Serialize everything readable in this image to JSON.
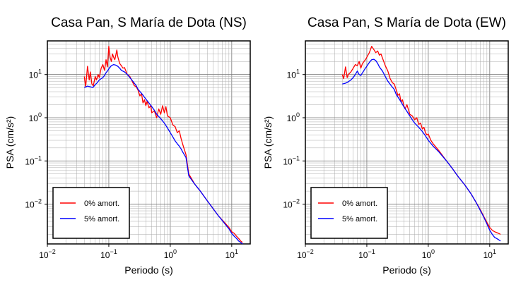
{
  "chart_data": [
    {
      "type": "line",
      "title": "Casa Pan, S María de Dota (NS)",
      "xlabel": "Periodo (s)",
      "ylabel": "PSA (cm/s²)",
      "x_scale": "log",
      "y_scale": "log",
      "xlim": [
        0.01,
        20
      ],
      "ylim": [
        0.0012,
        60
      ],
      "grid": true,
      "legend_position": "bottom-left",
      "x_ticks": [
        {
          "value": 0.01,
          "base": "10",
          "exp": "−2"
        },
        {
          "value": 0.1,
          "base": "10",
          "exp": "−1"
        },
        {
          "value": 1,
          "base": "10",
          "exp": "0"
        },
        {
          "value": 10,
          "base": "10",
          "exp": "1"
        }
      ],
      "y_ticks": [
        {
          "value": 0.01,
          "base": "10",
          "exp": "−2"
        },
        {
          "value": 0.1,
          "base": "10",
          "exp": "−1"
        },
        {
          "value": 1,
          "base": "10",
          "exp": "0"
        },
        {
          "value": 10,
          "base": "10",
          "exp": "1"
        }
      ],
      "series": [
        {
          "name": "0% amort.",
          "color": "#ff0000",
          "points": [
            [
              0.04,
              9.0
            ],
            [
              0.042,
              5.2
            ],
            [
              0.045,
              15.5
            ],
            [
              0.048,
              7.5
            ],
            [
              0.05,
              11.5
            ],
            [
              0.053,
              6.0
            ],
            [
              0.056,
              5.5
            ],
            [
              0.06,
              9.0
            ],
            [
              0.063,
              7.5
            ],
            [
              0.067,
              10.0
            ],
            [
              0.07,
              8.5
            ],
            [
              0.075,
              14.0
            ],
            [
              0.08,
              17.0
            ],
            [
              0.085,
              12.5
            ],
            [
              0.09,
              22.0
            ],
            [
              0.095,
              15.0
            ],
            [
              0.1,
              45.0
            ],
            [
              0.105,
              25.0
            ],
            [
              0.11,
              20.0
            ],
            [
              0.115,
              30.0
            ],
            [
              0.12,
              25.0
            ],
            [
              0.125,
              22.0
            ],
            [
              0.13,
              28.0
            ],
            [
              0.135,
              37.0
            ],
            [
              0.14,
              26.0
            ],
            [
              0.15,
              18.0
            ],
            [
              0.16,
              16.0
            ],
            [
              0.17,
              14.0
            ],
            [
              0.18,
              14.5
            ],
            [
              0.2,
              10.0
            ],
            [
              0.22,
              9.0
            ],
            [
              0.24,
              7.0
            ],
            [
              0.26,
              5.5
            ],
            [
              0.28,
              5.2
            ],
            [
              0.3,
              4.3
            ],
            [
              0.32,
              3.2
            ],
            [
              0.34,
              3.6
            ],
            [
              0.36,
              2.2
            ],
            [
              0.38,
              2.6
            ],
            [
              0.4,
              1.9
            ],
            [
              0.42,
              2.4
            ],
            [
              0.45,
              1.7
            ],
            [
              0.48,
              1.9
            ],
            [
              0.5,
              1.3
            ],
            [
              0.55,
              1.45
            ],
            [
              0.6,
              1.0
            ],
            [
              0.65,
              1.6
            ],
            [
              0.7,
              1.2
            ],
            [
              0.75,
              1.9
            ],
            [
              0.8,
              1.3
            ],
            [
              0.85,
              1.8
            ],
            [
              0.9,
              1.1
            ],
            [
              1.0,
              1.0
            ],
            [
              1.1,
              0.68
            ],
            [
              1.2,
              0.62
            ],
            [
              1.3,
              0.45
            ],
            [
              1.4,
              0.5
            ],
            [
              1.5,
              0.33
            ],
            [
              1.6,
              0.24
            ],
            [
              1.8,
              0.14
            ],
            [
              2.0,
              0.05
            ],
            [
              2.5,
              0.029
            ],
            [
              3.0,
              0.021
            ],
            [
              4.0,
              0.012
            ],
            [
              5.0,
              0.0078
            ],
            [
              6.0,
              0.0055
            ],
            [
              7.0,
              0.0043
            ],
            [
              8.0,
              0.0035
            ],
            [
              9.0,
              0.0029
            ],
            [
              10.0,
              0.0023
            ],
            [
              11.0,
              0.0021
            ],
            [
              12.0,
              0.0018
            ],
            [
              13.0,
              0.0016
            ],
            [
              14.0,
              0.0014
            ],
            [
              15.0,
              0.0013
            ]
          ]
        },
        {
          "name": "5% amort.",
          "color": "#0000ff",
          "points": [
            [
              0.04,
              5.0
            ],
            [
              0.045,
              5.4
            ],
            [
              0.05,
              5.2
            ],
            [
              0.055,
              5.0
            ],
            [
              0.06,
              5.8
            ],
            [
              0.065,
              6.5
            ],
            [
              0.07,
              7.5
            ],
            [
              0.075,
              8.0
            ],
            [
              0.08,
              8.5
            ],
            [
              0.085,
              9.5
            ],
            [
              0.09,
              11.0
            ],
            [
              0.095,
              12.0
            ],
            [
              0.1,
              13.5
            ],
            [
              0.11,
              16.0
            ],
            [
              0.12,
              17.0
            ],
            [
              0.13,
              16.5
            ],
            [
              0.14,
              15.5
            ],
            [
              0.15,
              14.0
            ],
            [
              0.16,
              12.5
            ],
            [
              0.18,
              11.5
            ],
            [
              0.2,
              10.0
            ],
            [
              0.22,
              8.5
            ],
            [
              0.25,
              6.8
            ],
            [
              0.28,
              5.5
            ],
            [
              0.3,
              4.5
            ],
            [
              0.35,
              3.5
            ],
            [
              0.4,
              2.7
            ],
            [
              0.45,
              2.2
            ],
            [
              0.5,
              1.8
            ],
            [
              0.55,
              1.5
            ],
            [
              0.6,
              1.2
            ],
            [
              0.7,
              0.95
            ],
            [
              0.8,
              0.75
            ],
            [
              0.9,
              0.58
            ],
            [
              1.0,
              0.45
            ],
            [
              1.1,
              0.36
            ],
            [
              1.2,
              0.29
            ],
            [
              1.3,
              0.25
            ],
            [
              1.4,
              0.22
            ],
            [
              1.5,
              0.19
            ],
            [
              1.6,
              0.16
            ],
            [
              1.8,
              0.12
            ],
            [
              2.0,
              0.045
            ],
            [
              2.5,
              0.029
            ],
            [
              3.0,
              0.021
            ],
            [
              4.0,
              0.012
            ],
            [
              5.0,
              0.0078
            ],
            [
              6.0,
              0.0055
            ],
            [
              7.0,
              0.0042
            ],
            [
              8.0,
              0.0033
            ],
            [
              9.0,
              0.0027
            ],
            [
              10.0,
              0.0021
            ],
            [
              11.0,
              0.0018
            ],
            [
              12.0,
              0.0016
            ],
            [
              13.0,
              0.0014
            ],
            [
              14.0,
              0.0013
            ],
            [
              15.0,
              0.0012
            ]
          ]
        }
      ]
    },
    {
      "type": "line",
      "title": "Casa Pan, S María de Dota (EW)",
      "xlabel": "Periodo (s)",
      "ylabel": "PSA (cm/s²)",
      "x_scale": "log",
      "y_scale": "log",
      "xlim": [
        0.01,
        20
      ],
      "ylim": [
        0.0012,
        60
      ],
      "grid": true,
      "legend_position": "bottom-left",
      "x_ticks": [
        {
          "value": 0.01,
          "base": "10",
          "exp": "−2"
        },
        {
          "value": 0.1,
          "base": "10",
          "exp": "−1"
        },
        {
          "value": 1,
          "base": "10",
          "exp": "0"
        },
        {
          "value": 10,
          "base": "10",
          "exp": "1"
        }
      ],
      "y_ticks": [
        {
          "value": 0.01,
          "base": "10",
          "exp": "−2"
        },
        {
          "value": 0.1,
          "base": "10",
          "exp": "−1"
        },
        {
          "value": 1,
          "base": "10",
          "exp": "0"
        },
        {
          "value": 10,
          "base": "10",
          "exp": "1"
        }
      ],
      "series": [
        {
          "name": "0% amort.",
          "color": "#ff0000",
          "points": [
            [
              0.04,
              10.0
            ],
            [
              0.042,
              8.0
            ],
            [
              0.045,
              15.0
            ],
            [
              0.048,
              8.5
            ],
            [
              0.05,
              10.0
            ],
            [
              0.055,
              11.5
            ],
            [
              0.06,
              14.0
            ],
            [
              0.065,
              17.0
            ],
            [
              0.07,
              16.0
            ],
            [
              0.075,
              20.0
            ],
            [
              0.08,
              14.0
            ],
            [
              0.085,
              18.0
            ],
            [
              0.09,
              20.0
            ],
            [
              0.095,
              22.0
            ],
            [
              0.1,
              25.0
            ],
            [
              0.11,
              32.0
            ],
            [
              0.12,
              45.0
            ],
            [
              0.13,
              38.0
            ],
            [
              0.14,
              32.0
            ],
            [
              0.15,
              35.0
            ],
            [
              0.16,
              28.0
            ],
            [
              0.17,
              30.0
            ],
            [
              0.18,
              24.0
            ],
            [
              0.2,
              16.0
            ],
            [
              0.22,
              12.0
            ],
            [
              0.24,
              8.0
            ],
            [
              0.26,
              6.5
            ],
            [
              0.28,
              6.0
            ],
            [
              0.3,
              4.5
            ],
            [
              0.32,
              3.3
            ],
            [
              0.34,
              3.6
            ],
            [
              0.36,
              2.3
            ],
            [
              0.38,
              2.6
            ],
            [
              0.4,
              1.9
            ],
            [
              0.42,
              1.6
            ],
            [
              0.45,
              2.0
            ],
            [
              0.5,
              1.2
            ],
            [
              0.55,
              1.1
            ],
            [
              0.6,
              0.9
            ],
            [
              0.65,
              1.0
            ],
            [
              0.7,
              0.7
            ],
            [
              0.75,
              0.75
            ],
            [
              0.8,
              0.55
            ],
            [
              0.85,
              0.6
            ],
            [
              0.9,
              0.45
            ],
            [
              0.95,
              0.4
            ],
            [
              1.0,
              0.42
            ],
            [
              1.1,
              0.3
            ],
            [
              1.2,
              0.25
            ],
            [
              1.5,
              0.17
            ],
            [
              2.0,
              0.098
            ],
            [
              2.5,
              0.065
            ],
            [
              3.0,
              0.045
            ],
            [
              4.0,
              0.027
            ],
            [
              5.0,
              0.017
            ],
            [
              6.0,
              0.011
            ],
            [
              7.0,
              0.0075
            ],
            [
              8.0,
              0.0052
            ],
            [
              9.0,
              0.0038
            ],
            [
              10.0,
              0.0029
            ],
            [
              11.0,
              0.0025
            ],
            [
              12.0,
              0.0023
            ],
            [
              13.0,
              0.0022
            ],
            [
              14.0,
              0.0021
            ],
            [
              15.0,
              0.002
            ]
          ]
        },
        {
          "name": "5% amort.",
          "color": "#0000ff",
          "points": [
            [
              0.04,
              6.0
            ],
            [
              0.045,
              6.3
            ],
            [
              0.05,
              6.8
            ],
            [
              0.055,
              7.5
            ],
            [
              0.06,
              8.5
            ],
            [
              0.065,
              10.0
            ],
            [
              0.07,
              12.0
            ],
            [
              0.075,
              10.0
            ],
            [
              0.08,
              9.5
            ],
            [
              0.085,
              11.0
            ],
            [
              0.09,
              12.5
            ],
            [
              0.095,
              14.0
            ],
            [
              0.1,
              15.5
            ],
            [
              0.11,
              19.0
            ],
            [
              0.12,
              22.0
            ],
            [
              0.13,
              22.5
            ],
            [
              0.14,
              21.0
            ],
            [
              0.15,
              18.0
            ],
            [
              0.16,
              15.0
            ],
            [
              0.18,
              12.0
            ],
            [
              0.2,
              9.0
            ],
            [
              0.22,
              7.0
            ],
            [
              0.25,
              5.5
            ],
            [
              0.28,
              4.5
            ],
            [
              0.3,
              3.5
            ],
            [
              0.35,
              2.5
            ],
            [
              0.4,
              1.8
            ],
            [
              0.45,
              1.4
            ],
            [
              0.5,
              1.1
            ],
            [
              0.55,
              0.9
            ],
            [
              0.6,
              0.75
            ],
            [
              0.7,
              0.6
            ],
            [
              0.8,
              0.48
            ],
            [
              0.9,
              0.38
            ],
            [
              1.0,
              0.3
            ],
            [
              1.2,
              0.22
            ],
            [
              1.5,
              0.16
            ],
            [
              2.0,
              0.098
            ],
            [
              2.5,
              0.065
            ],
            [
              3.0,
              0.045
            ],
            [
              4.0,
              0.027
            ],
            [
              5.0,
              0.017
            ],
            [
              6.0,
              0.011
            ],
            [
              7.0,
              0.0072
            ],
            [
              8.0,
              0.005
            ],
            [
              9.0,
              0.0035
            ],
            [
              10.0,
              0.0025
            ],
            [
              11.0,
              0.002
            ],
            [
              12.0,
              0.0017
            ],
            [
              13.0,
              0.0016
            ],
            [
              14.0,
              0.0015
            ],
            [
              15.0,
              0.0014
            ]
          ]
        }
      ]
    }
  ]
}
